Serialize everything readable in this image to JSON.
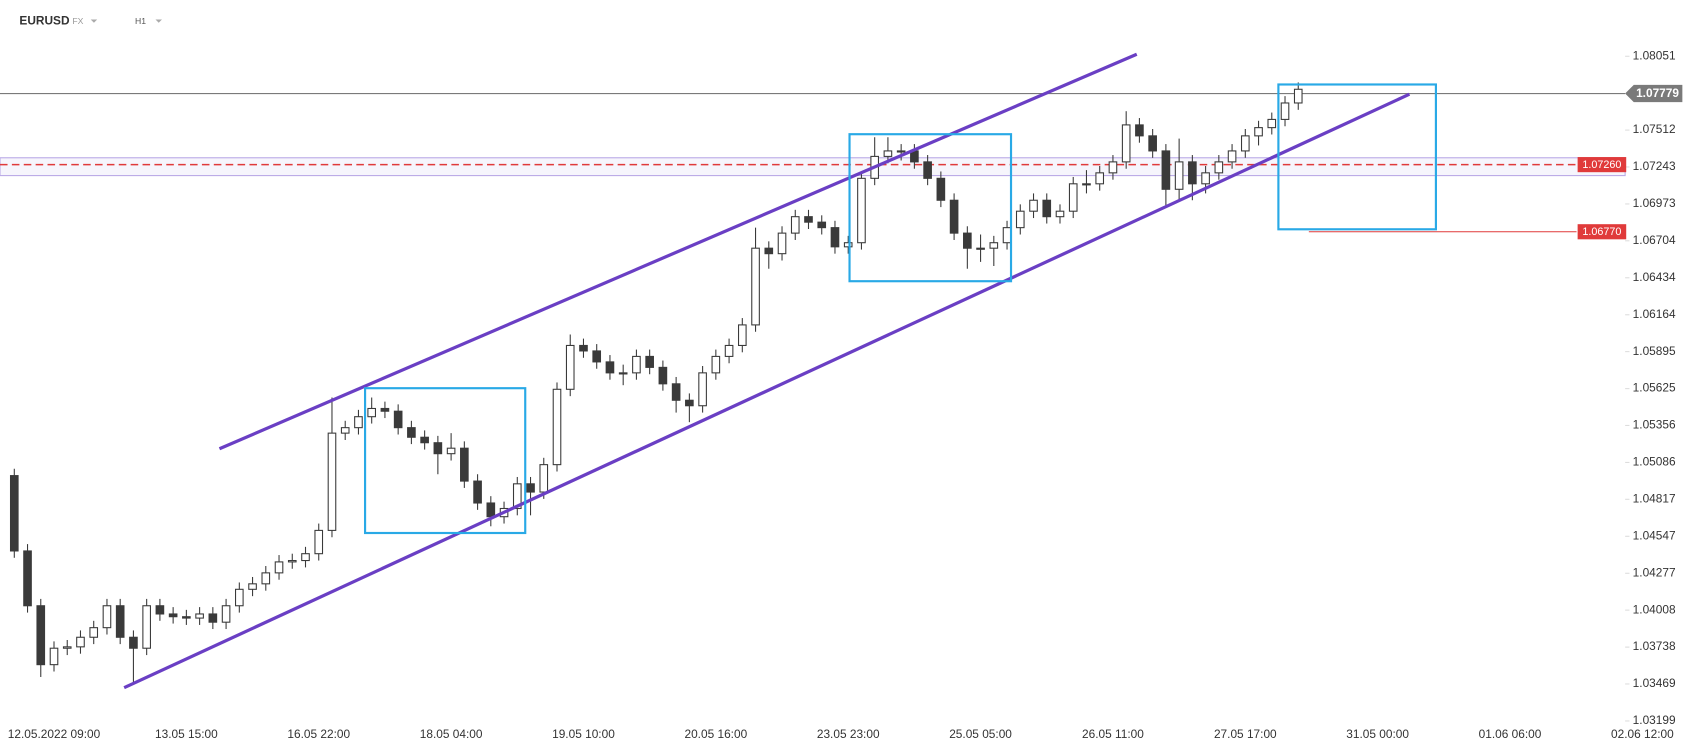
{
  "chart_data": {
    "type": "candlestick",
    "symbol": "EURUSD",
    "market": "FX",
    "interval": "H1",
    "ohlc": [
      [
        1.0499,
        1.0504,
        1.0439,
        1.0444
      ],
      [
        1.0444,
        1.0449,
        1.0399,
        1.0404
      ],
      [
        1.0404,
        1.0409,
        1.0352,
        1.0361
      ],
      [
        1.0361,
        1.0378,
        1.0356,
        1.0373
      ],
      [
        1.0373,
        1.0379,
        1.0368,
        1.0374
      ],
      [
        1.0374,
        1.0386,
        1.0369,
        1.0381
      ],
      [
        1.0381,
        1.0393,
        1.0376,
        1.0388
      ],
      [
        1.0388,
        1.0409,
        1.0383,
        1.0404
      ],
      [
        1.0404,
        1.0409,
        1.0376,
        1.0381
      ],
      [
        1.0381,
        1.0386,
        1.0347,
        1.0373
      ],
      [
        1.0373,
        1.0409,
        1.0368,
        1.0404
      ],
      [
        1.0404,
        1.0409,
        1.0393,
        1.0398
      ],
      [
        1.0398,
        1.0403,
        1.0391,
        1.0396
      ],
      [
        1.0396,
        1.0401,
        1.039,
        1.0395
      ],
      [
        1.0395,
        1.0403,
        1.039,
        1.0398
      ],
      [
        1.0398,
        1.0403,
        1.0387,
        1.0392
      ],
      [
        1.0392,
        1.0409,
        1.0387,
        1.0404
      ],
      [
        1.0404,
        1.0421,
        1.0399,
        1.0416
      ],
      [
        1.0416,
        1.0425,
        1.0411,
        1.042
      ],
      [
        1.042,
        1.0433,
        1.0415,
        1.0428
      ],
      [
        1.0428,
        1.0441,
        1.0423,
        1.0436
      ],
      [
        1.0436,
        1.0442,
        1.0431,
        1.0437
      ],
      [
        1.0437,
        1.0447,
        1.0432,
        1.0442
      ],
      [
        1.0442,
        1.0464,
        1.0437,
        1.0459
      ],
      [
        1.0459,
        1.0556,
        1.0454,
        1.053
      ],
      [
        1.053,
        1.0539,
        1.0525,
        1.0534
      ],
      [
        1.0534,
        1.0547,
        1.0529,
        1.0542
      ],
      [
        1.0542,
        1.0556,
        1.0537,
        1.0548
      ],
      [
        1.0548,
        1.0553,
        1.0541,
        1.0546
      ],
      [
        1.0546,
        1.0551,
        1.0529,
        1.0534
      ],
      [
        1.0534,
        1.0539,
        1.0522,
        1.0527
      ],
      [
        1.0527,
        1.0532,
        1.0518,
        1.0523
      ],
      [
        1.0523,
        1.0528,
        1.05,
        1.0515
      ],
      [
        1.0515,
        1.053,
        1.051,
        1.0519
      ],
      [
        1.0519,
        1.0524,
        1.049,
        1.0495
      ],
      [
        1.0495,
        1.05,
        1.0474,
        1.0479
      ],
      [
        1.0479,
        1.0484,
        1.0462,
        1.0469
      ],
      [
        1.0469,
        1.048,
        1.0464,
        1.0475
      ],
      [
        1.0475,
        1.0498,
        1.047,
        1.0493
      ],
      [
        1.0493,
        1.0498,
        1.047,
        1.0487
      ],
      [
        1.0487,
        1.0512,
        1.0482,
        1.0507
      ],
      [
        1.0507,
        1.0567,
        1.0502,
        1.0562
      ],
      [
        1.0562,
        1.0602,
        1.0557,
        1.0594
      ],
      [
        1.0594,
        1.0599,
        1.0585,
        1.059
      ],
      [
        1.059,
        1.0595,
        1.0577,
        1.0582
      ],
      [
        1.0582,
        1.0587,
        1.0569,
        1.0574
      ],
      [
        1.0574,
        1.058,
        1.0565,
        1.0574
      ],
      [
        1.0574,
        1.0591,
        1.0569,
        1.0586
      ],
      [
        1.0586,
        1.0591,
        1.0573,
        1.0578
      ],
      [
        1.0578,
        1.0583,
        1.0561,
        1.0566
      ],
      [
        1.0566,
        1.0571,
        1.0545,
        1.0554
      ],
      [
        1.0554,
        1.0559,
        1.0538,
        1.055
      ],
      [
        1.055,
        1.0579,
        1.0545,
        1.0574
      ],
      [
        1.0574,
        1.0591,
        1.0569,
        1.0586
      ],
      [
        1.0586,
        1.0599,
        1.0581,
        1.0594
      ],
      [
        1.0594,
        1.0614,
        1.0589,
        1.0609
      ],
      [
        1.0609,
        1.068,
        1.0604,
        1.0665
      ],
      [
        1.0665,
        1.067,
        1.065,
        1.0661
      ],
      [
        1.0661,
        1.0681,
        1.0656,
        1.0676
      ],
      [
        1.0676,
        1.0693,
        1.0671,
        1.0688
      ],
      [
        1.0688,
        1.0693,
        1.0679,
        1.0684
      ],
      [
        1.0684,
        1.0689,
        1.0675,
        1.068
      ],
      [
        1.068,
        1.0685,
        1.0661,
        1.0666
      ],
      [
        1.0666,
        1.0674,
        1.0661,
        1.0669
      ],
      [
        1.0669,
        1.0721,
        1.0664,
        1.0716
      ],
      [
        1.0716,
        1.0746,
        1.0711,
        1.0732
      ],
      [
        1.0732,
        1.0746,
        1.0727,
        1.0736
      ],
      [
        1.0736,
        1.0741,
        1.0729,
        1.0736
      ],
      [
        1.0736,
        1.0741,
        1.0723,
        1.0728
      ],
      [
        1.0728,
        1.0733,
        1.0711,
        1.0716
      ],
      [
        1.0716,
        1.0721,
        1.0695,
        1.07
      ],
      [
        1.07,
        1.0705,
        1.0671,
        1.0676
      ],
      [
        1.0676,
        1.0681,
        1.065,
        1.0665
      ],
      [
        1.0665,
        1.0675,
        1.0655,
        1.0665
      ],
      [
        1.0665,
        1.0674,
        1.0652,
        1.0669
      ],
      [
        1.0669,
        1.0685,
        1.0664,
        1.068
      ],
      [
        1.068,
        1.0697,
        1.0675,
        1.0692
      ],
      [
        1.0692,
        1.0705,
        1.0687,
        1.07
      ],
      [
        1.07,
        1.0705,
        1.0683,
        1.0688
      ],
      [
        1.0688,
        1.0697,
        1.0683,
        1.0692
      ],
      [
        1.0692,
        1.0717,
        1.0687,
        1.0712
      ],
      [
        1.0712,
        1.0722,
        1.0705,
        1.0712
      ],
      [
        1.0712,
        1.0725,
        1.0707,
        1.072
      ],
      [
        1.072,
        1.0733,
        1.0715,
        1.0728
      ],
      [
        1.0728,
        1.0765,
        1.0723,
        1.0755
      ],
      [
        1.0755,
        1.076,
        1.0742,
        1.0747
      ],
      [
        1.0747,
        1.0752,
        1.0731,
        1.0736
      ],
      [
        1.0736,
        1.0741,
        1.0695,
        1.0708
      ],
      [
        1.0708,
        1.0745,
        1.07,
        1.0728
      ],
      [
        1.0728,
        1.0733,
        1.07,
        1.0712
      ],
      [
        1.0712,
        1.0725,
        1.0705,
        1.072
      ],
      [
        1.072,
        1.0733,
        1.0715,
        1.0728
      ],
      [
        1.0728,
        1.0741,
        1.0723,
        1.0736
      ],
      [
        1.0736,
        1.0752,
        1.0731,
        1.0747
      ],
      [
        1.0747,
        1.0758,
        1.074,
        1.0753
      ],
      [
        1.0753,
        1.0764,
        1.0748,
        1.0759
      ],
      [
        1.0759,
        1.0776,
        1.0754,
        1.0771
      ],
      [
        1.0771,
        1.0786,
        1.0766,
        1.0781
      ]
    ],
    "up_color": "#ffffff",
    "down_color": "#3a3a3a",
    "wick_color": "#3a3a3a",
    "xlim": [
      -1.08,
      123
    ],
    "xticks": [
      {
        "value": 3,
        "label": "12.05.2022  09:00"
      },
      {
        "value": 13,
        "label": "13.05  15:00"
      },
      {
        "value": 23,
        "label": "16.05  22:00"
      },
      {
        "value": 33,
        "label": "18.05  04:00"
      },
      {
        "value": 43,
        "label": "19.05  10:00"
      },
      {
        "value": 53,
        "label": "20.05  16:00"
      },
      {
        "value": 63,
        "label": "23.05  23:00"
      },
      {
        "value": 73,
        "label": "25.05  05:00"
      },
      {
        "value": 83,
        "label": "26.05  11:00"
      },
      {
        "value": 93,
        "label": "27.05  17:00"
      },
      {
        "value": 103,
        "label": "31.05  00:00"
      },
      {
        "value": 113,
        "label": "01.06  06:00"
      },
      {
        "value": 123,
        "label": "02.06  12:00"
      }
    ],
    "ylim": [
      1.03018,
      1.08225
    ],
    "yticks": [
      1.08051,
      1.07512,
      1.07243,
      1.06973,
      1.06704,
      1.06434,
      1.06164,
      1.05895,
      1.05625,
      1.05356,
      1.05086,
      1.04817,
      1.04547,
      1.04277,
      1.04008,
      1.03738,
      1.03469,
      1.03199
    ],
    "current_price": 1.07779,
    "current_color": "#7a7a7a",
    "levels": [
      {
        "value": 1.0726,
        "label": "1.07260",
        "color": "#e03a3a",
        "dashed": true,
        "start": -1.08
      },
      {
        "value": 1.0677,
        "label": "1.06770",
        "color": "#e03a3a",
        "dashed": false,
        "start": 97.8
      }
    ],
    "zone": {
      "from": 1.0718,
      "to": 1.0731,
      "color": "#b9a9e6"
    },
    "channel": {
      "color": "#6a3fc4",
      "lines": [
        [
          [
            15.5,
            1.05186
          ],
          [
            84.8,
            1.08066
          ]
        ],
        [
          [
            8.3,
            1.03442
          ],
          [
            105.4,
            1.07774
          ]
        ]
      ]
    },
    "boxes": {
      "color": "#29a9e6",
      "rects": [
        [
          26.5,
          1.05628,
          38.6,
          1.04571
        ],
        [
          63.1,
          1.07482,
          75.3,
          1.06409
        ],
        [
          95.5,
          1.07845,
          107.4,
          1.06788
        ]
      ]
    }
  }
}
